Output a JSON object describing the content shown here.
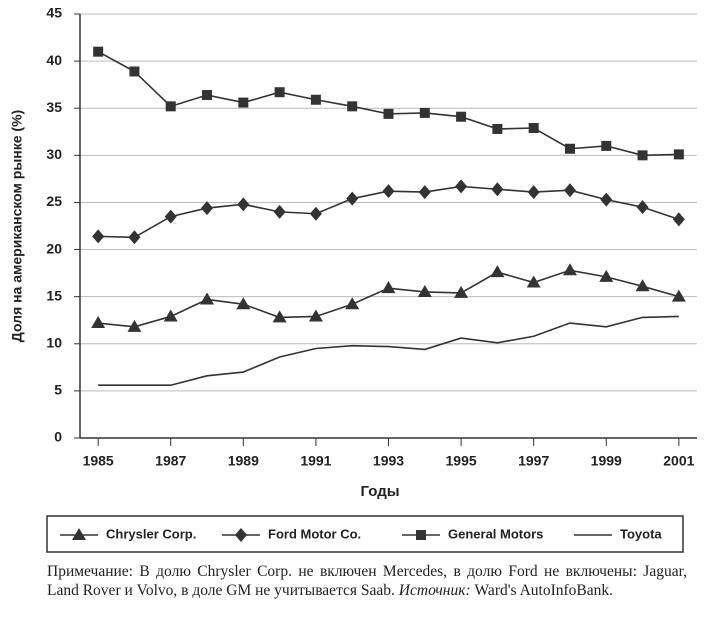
{
  "chart_data": {
    "type": "line",
    "xlabel": "Годы",
    "ylabel": "Доля на американском рынке (%)",
    "x": [
      1985,
      1986,
      1987,
      1988,
      1989,
      1990,
      1991,
      1992,
      1993,
      1994,
      1995,
      1996,
      1997,
      1998,
      1999,
      2000,
      2001
    ],
    "xlim": [
      1984.5,
      2001.5
    ],
    "xticks": [
      1985,
      1987,
      1989,
      1991,
      1993,
      1995,
      1997,
      1999,
      2001
    ],
    "ylim": [
      0,
      45
    ],
    "yticks": [
      0,
      5,
      10,
      15,
      20,
      25,
      30,
      35,
      40,
      45
    ],
    "grid": true,
    "legend": "bottom",
    "series": [
      {
        "name": "Chrysler Corp.",
        "color": "#333333",
        "marker": "triangle",
        "values": [
          12.2,
          11.8,
          12.9,
          14.7,
          14.2,
          12.8,
          12.9,
          14.2,
          15.9,
          15.5,
          15.4,
          17.6,
          16.5,
          17.8,
          17.1,
          16.1,
          15.0
        ]
      },
      {
        "name": "Ford Motor Co.",
        "color": "#333333",
        "marker": "diamond",
        "values": [
          21.4,
          21.3,
          23.5,
          24.4,
          24.8,
          24.0,
          23.8,
          25.4,
          26.2,
          26.1,
          26.7,
          26.4,
          26.1,
          26.3,
          25.3,
          24.5,
          23.2
        ]
      },
      {
        "name": "General Motors",
        "color": "#333333",
        "marker": "square",
        "values": [
          41.0,
          38.9,
          35.2,
          36.4,
          35.6,
          36.7,
          35.9,
          35.2,
          34.4,
          34.5,
          34.1,
          32.8,
          32.9,
          30.7,
          31.0,
          30.0,
          30.1
        ]
      },
      {
        "name": "Toyota",
        "color": "#333333",
        "marker": "none",
        "values": [
          5.6,
          5.6,
          5.6,
          6.6,
          7.0,
          8.6,
          9.5,
          9.8,
          9.7,
          9.4,
          10.6,
          10.1,
          10.8,
          12.2,
          11.8,
          12.8,
          12.9
        ]
      }
    ]
  },
  "note": "Примечание: В долю Chrysler Corp. не включен Mercedes, в долю Ford не включены: Jaguar, Land Rover и Volvo, в доле GM не учитывается Saab.",
  "source_label": "Источник:",
  "source": "Ward's AutoInfoBank."
}
